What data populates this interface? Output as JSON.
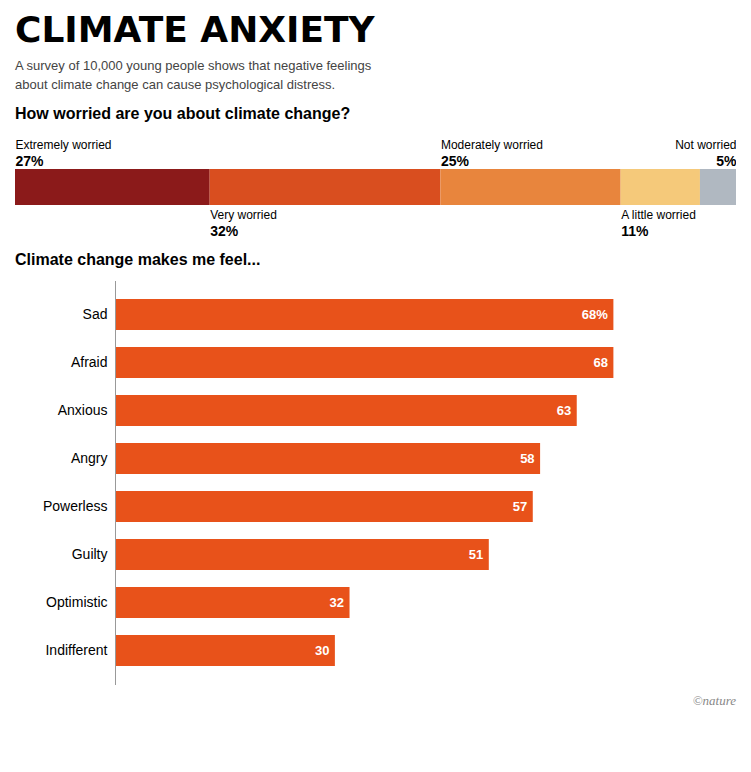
{
  "title": "CLIMATE ANXIETY",
  "subtitle": "A survey of 10,000 young people shows that negative feelings\nabout climate change can cause psychological distress.",
  "chart_data": [
    {
      "type": "bar",
      "orientation": "horizontal",
      "stacked": true,
      "title": "How worried are you about climate change?",
      "categories": [
        null
      ],
      "series": [
        {
          "name": "Extremely worried",
          "color": "#8B1A1A",
          "values": [
            27
          ],
          "value_labels": [
            "27%"
          ]
        },
        {
          "name": "Very worried",
          "color": "#D94E1F",
          "values": [
            32
          ],
          "value_labels": [
            "32%"
          ]
        },
        {
          "name": "Moderately worried",
          "color": "#E8853D",
          "values": [
            25
          ],
          "value_labels": [
            "25%"
          ]
        },
        {
          "name": "A little worried",
          "color": "#F5C97A",
          "values": [
            11
          ],
          "value_labels": [
            "11%"
          ]
        },
        {
          "name": "Not worried",
          "color": "#B0B8C1",
          "values": [
            5
          ],
          "value_labels": [
            "5%"
          ]
        }
      ],
      "xlim": [
        0,
        100
      ],
      "tick_labels": false,
      "data_labels": true
    },
    {
      "type": "bar",
      "orientation": "horizontal",
      "title": "Climate change makes me feel...",
      "categories": [
        "Sad",
        "Afraid",
        "Anxious",
        "Angry",
        "Powerless",
        "Guilty",
        "Optimistic",
        "Indifferent"
      ],
      "values": [
        68,
        68,
        63,
        58,
        57,
        51,
        32,
        30
      ],
      "value_labels": [
        "68%",
        "68",
        "63",
        "58",
        "57",
        "51",
        "32",
        "30"
      ],
      "color": "#E8521A",
      "xlim": [
        0,
        82
      ],
      "tick_labels": "y",
      "data_labels": true,
      "annotations": [
        "©nature"
      ]
    }
  ]
}
